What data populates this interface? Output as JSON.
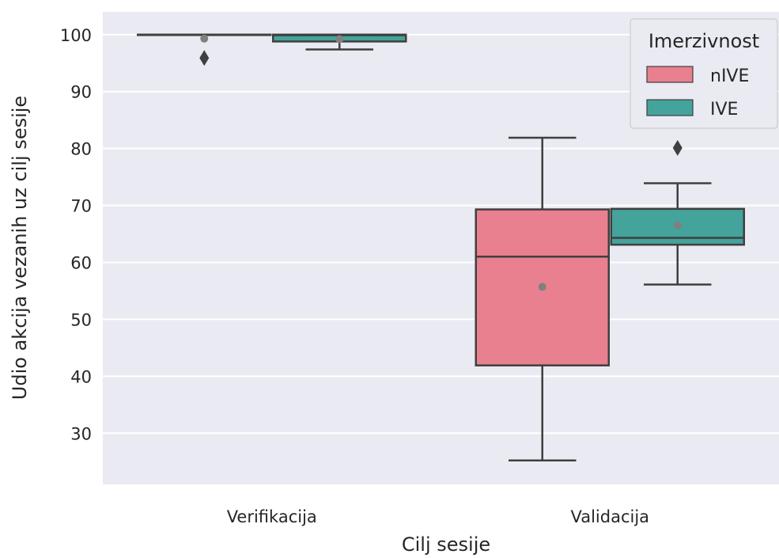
{
  "chart_data": {
    "type": "box",
    "xlabel": "Cilj sesije",
    "ylabel": "Udio akcija vezanih uz cilj sesije",
    "ylim": [
      21,
      104
    ],
    "yticks": [
      30,
      40,
      50,
      60,
      70,
      80,
      90,
      100
    ],
    "categories": [
      "Verifikacija",
      "Validacija"
    ],
    "grid": true,
    "legend": {
      "title": "Imerzivnost",
      "placement": "top-right"
    },
    "series": [
      {
        "name": "nIVE",
        "color": "#e8808f",
        "boxes": [
          {
            "category": "Verifikacija",
            "whisker_low": 100,
            "q1": 100,
            "median": 100,
            "q3": 100,
            "whisker_high": 100,
            "mean": 99.3,
            "outliers": [
              95.9
            ]
          },
          {
            "category": "Validacija",
            "whisker_low": 25.2,
            "q1": 41.9,
            "median": 61.0,
            "q3": 69.3,
            "whisker_high": 81.9,
            "mean": 55.7,
            "outliers": []
          }
        ]
      },
      {
        "name": "IVE",
        "color": "#44a39a",
        "boxes": [
          {
            "category": "Verifikacija",
            "whisker_low": 97.4,
            "q1": 98.8,
            "median": 99.9,
            "q3": 100,
            "whisker_high": 100,
            "mean": 99.2,
            "outliers": []
          },
          {
            "category": "Validacija",
            "whisker_low": 56.1,
            "q1": 63.1,
            "median": 64.3,
            "q3": 69.4,
            "whisker_high": 73.9,
            "mean": 66.5,
            "outliers": [
              80.1
            ]
          }
        ]
      }
    ]
  }
}
